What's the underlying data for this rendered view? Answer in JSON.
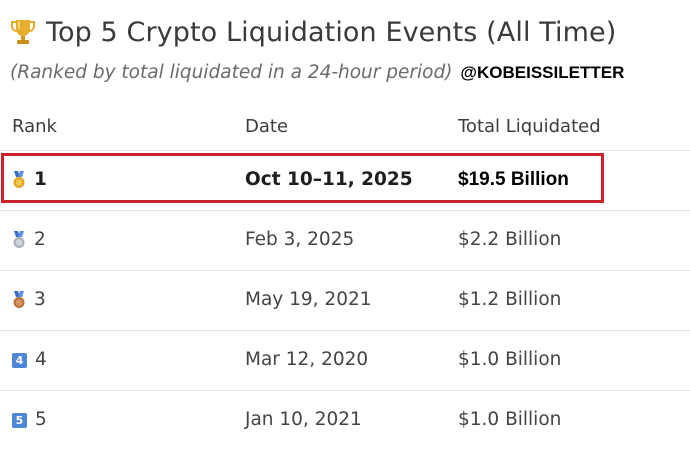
{
  "header": {
    "title": "Top 5 Crypto Liquidation Events (All Time)",
    "title_icon": "trophy-icon",
    "subtitle": "(Ranked by total liquidated in a 24-hour period)",
    "handle": "@KOBEISSILETTER"
  },
  "table": {
    "columns": {
      "rank": "Rank",
      "date": "Date",
      "total": "Total Liquidated"
    },
    "rows": [
      {
        "rank": "1",
        "icon": "gold-medal-icon",
        "date": "Oct 10–11, 2025",
        "total": "$19.5 Billion",
        "highlighted": true
      },
      {
        "rank": "2",
        "icon": "silver-medal-icon",
        "date": "Feb 3, 2025",
        "total": "$2.2 Billion",
        "highlighted": false
      },
      {
        "rank": "3",
        "icon": "bronze-medal-icon",
        "date": "May 19, 2021",
        "total": "$1.2 Billion",
        "highlighted": false
      },
      {
        "rank": "4",
        "icon": "number-four-icon",
        "date": "Mar 12, 2020",
        "total": "$1.0 Billion",
        "highlighted": false
      },
      {
        "rank": "5",
        "icon": "number-five-icon",
        "date": "Jan 10, 2021",
        "total": "$1.0 Billion",
        "highlighted": false
      }
    ]
  },
  "icon_glyphs": {
    "number-four-icon": "4",
    "number-five-icon": "5"
  },
  "colors": {
    "highlight_border": "#c8252b",
    "gold": "#e0a526",
    "silver": "#a9b0bb",
    "bronze": "#b8703a",
    "number_box": "#4f86d8"
  }
}
